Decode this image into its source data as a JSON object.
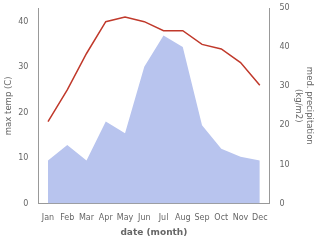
{
  "chart_data": {
    "type": "line",
    "xlabel": "date (month)",
    "ylabel": "max temp (C)",
    "y2label": "med. precipitation\n(kg/m2)",
    "categories": [
      "Jan",
      "Feb",
      "Mar",
      "Apr",
      "May",
      "Jun",
      "Jul",
      "Aug",
      "Sep",
      "Oct",
      "Nov",
      "Dec"
    ],
    "series": [
      {
        "type": "area",
        "axis": "y2",
        "color": "#b8c4ee",
        "values": [
          11,
          15,
          11,
          21,
          18,
          35,
          43,
          40,
          20,
          14,
          12,
          11
        ]
      },
      {
        "type": "line",
        "color": "#c0392b",
        "values": [
          18,
          25,
          33,
          40,
          41,
          40,
          38,
          38,
          35,
          34,
          31,
          26
        ]
      }
    ],
    "ylim": [
      0,
      43
    ],
    "yticks": [
      0,
      10,
      20,
      30,
      40
    ],
    "y2lim": [
      0,
      50
    ],
    "y2ticks": [
      0,
      10,
      20,
      30,
      40,
      50
    ],
    "grid": false
  }
}
